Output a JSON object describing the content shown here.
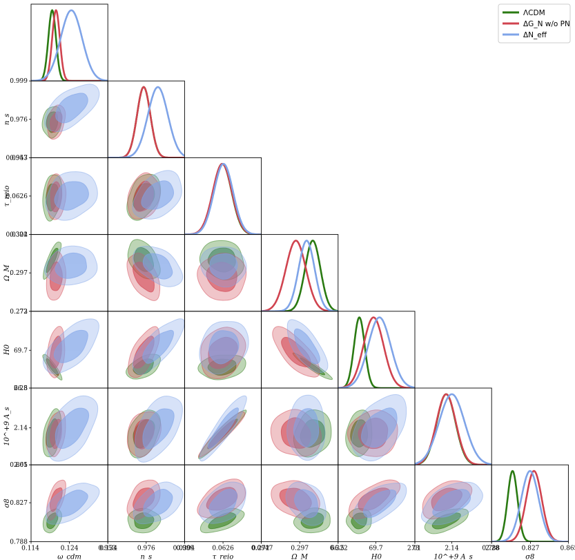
{
  "chart_data": {
    "type": "corner-plot",
    "title": "",
    "parameters": [
      {
        "key": "omega_cdm",
        "label": "ω_cdm",
        "range": [
          0.114,
          0.134
        ],
        "ticks": [
          "0.114",
          "0.124",
          "0.134"
        ]
      },
      {
        "key": "n_s",
        "label": "n_s",
        "range": [
          0.953,
          0.999
        ],
        "ticks": [
          "0.953",
          "0.976",
          "0.999"
        ]
      },
      {
        "key": "tau_reio",
        "label": "τ_reio",
        "range": [
          0.0304,
          0.0947
        ],
        "ticks": [
          "0.0304",
          "0.0626",
          "0.0947"
        ]
      },
      {
        "key": "Omega_M",
        "label": "Ω_M",
        "range": [
          0.272,
          0.322
        ],
        "ticks": [
          "0.272",
          "0.297",
          "0.322"
        ]
      },
      {
        "key": "H0",
        "label": "H0",
        "range": [
          66.5,
          73
        ],
        "ticks": [
          "66.5",
          "69.7",
          "73"
        ]
      },
      {
        "key": "As",
        "label": "10^+9 A_s",
        "range": [
          2.01,
          2.28
        ],
        "ticks": [
          "2.01",
          "2.14",
          "2.28"
        ]
      },
      {
        "key": "sigma8",
        "label": "σ8",
        "range": [
          0.788,
          0.865
        ],
        "ticks": [
          "0.788",
          "0.827",
          "0.865"
        ]
      }
    ],
    "series": [
      {
        "name": "ΛCDM",
        "color": "#2a7a12",
        "mean": [
          0.1195,
          0.9745,
          0.062,
          0.3055,
          68.3,
          2.12,
          0.809
        ],
        "sigma": [
          0.001,
          0.004,
          0.0078,
          0.005,
          0.45,
          0.033,
          0.005
        ],
        "corr": [
          [
            1,
            0.2,
            0.15,
            0.85,
            -0.9,
            0.35,
            0.45
          ],
          [
            0.2,
            1,
            0.3,
            -0.35,
            0.5,
            0.3,
            0.1
          ],
          [
            0.15,
            0.3,
            1,
            -0.1,
            0.2,
            0.95,
            0.65
          ],
          [
            0.85,
            -0.35,
            -0.1,
            1,
            -0.95,
            0.1,
            0.2
          ],
          [
            -0.9,
            0.5,
            0.2,
            -0.95,
            1,
            0.05,
            0.1
          ],
          [
            0.35,
            0.3,
            0.95,
            0.1,
            0.05,
            1,
            0.6
          ],
          [
            0.45,
            0.1,
            0.65,
            0.2,
            0.1,
            0.6,
            1
          ]
        ]
      },
      {
        "name": "ΔG_N w/o PN",
        "color": "#d0434f",
        "mean": [
          0.1205,
          0.9745,
          0.062,
          0.2945,
          69.5,
          2.12,
          0.8305
        ],
        "sigma": [
          0.001,
          0.004,
          0.008,
          0.0065,
          0.85,
          0.034,
          0.0078
        ],
        "corr": [
          [
            1,
            0.25,
            0.15,
            0.1,
            0.3,
            0.35,
            0.55
          ],
          [
            0.25,
            1,
            0.3,
            -0.55,
            0.65,
            0.3,
            0.35
          ],
          [
            0.15,
            0.3,
            1,
            -0.05,
            0.2,
            0.95,
            0.4
          ],
          [
            0.1,
            -0.55,
            -0.05,
            1,
            -0.75,
            -0.05,
            -0.35
          ],
          [
            0.3,
            0.65,
            0.2,
            -0.75,
            1,
            0.15,
            0.6
          ],
          [
            0.35,
            0.3,
            0.95,
            -0.05,
            0.15,
            1,
            0.4
          ],
          [
            0.55,
            0.35,
            0.4,
            -0.35,
            0.6,
            0.4,
            1
          ]
        ]
      },
      {
        "name": "ΔN_eff",
        "color": "#7fa4e8",
        "mean": [
          0.1245,
          0.983,
          0.063,
          0.3015,
          70.0,
          2.14,
          0.8265
        ],
        "sigma": [
          0.0028,
          0.006,
          0.008,
          0.0052,
          0.95,
          0.045,
          0.0088
        ],
        "corr": [
          [
            1,
            0.6,
            0.15,
            0.2,
            0.6,
            0.5,
            0.6
          ],
          [
            0.6,
            1,
            0.3,
            -0.4,
            0.75,
            0.5,
            0.5
          ],
          [
            0.15,
            0.3,
            1,
            0.0,
            0.2,
            0.9,
            0.5
          ],
          [
            0.2,
            -0.4,
            0.0,
            1,
            -0.7,
            -0.05,
            -0.25
          ],
          [
            0.6,
            0.75,
            0.2,
            -0.7,
            1,
            0.4,
            0.65
          ],
          [
            0.5,
            0.5,
            0.9,
            -0.05,
            0.4,
            1,
            0.55
          ],
          [
            0.6,
            0.5,
            0.5,
            -0.25,
            0.65,
            0.55,
            1
          ]
        ]
      }
    ],
    "contour_levels": [
      "68%",
      "95%"
    ],
    "legend_position": "top-right"
  }
}
